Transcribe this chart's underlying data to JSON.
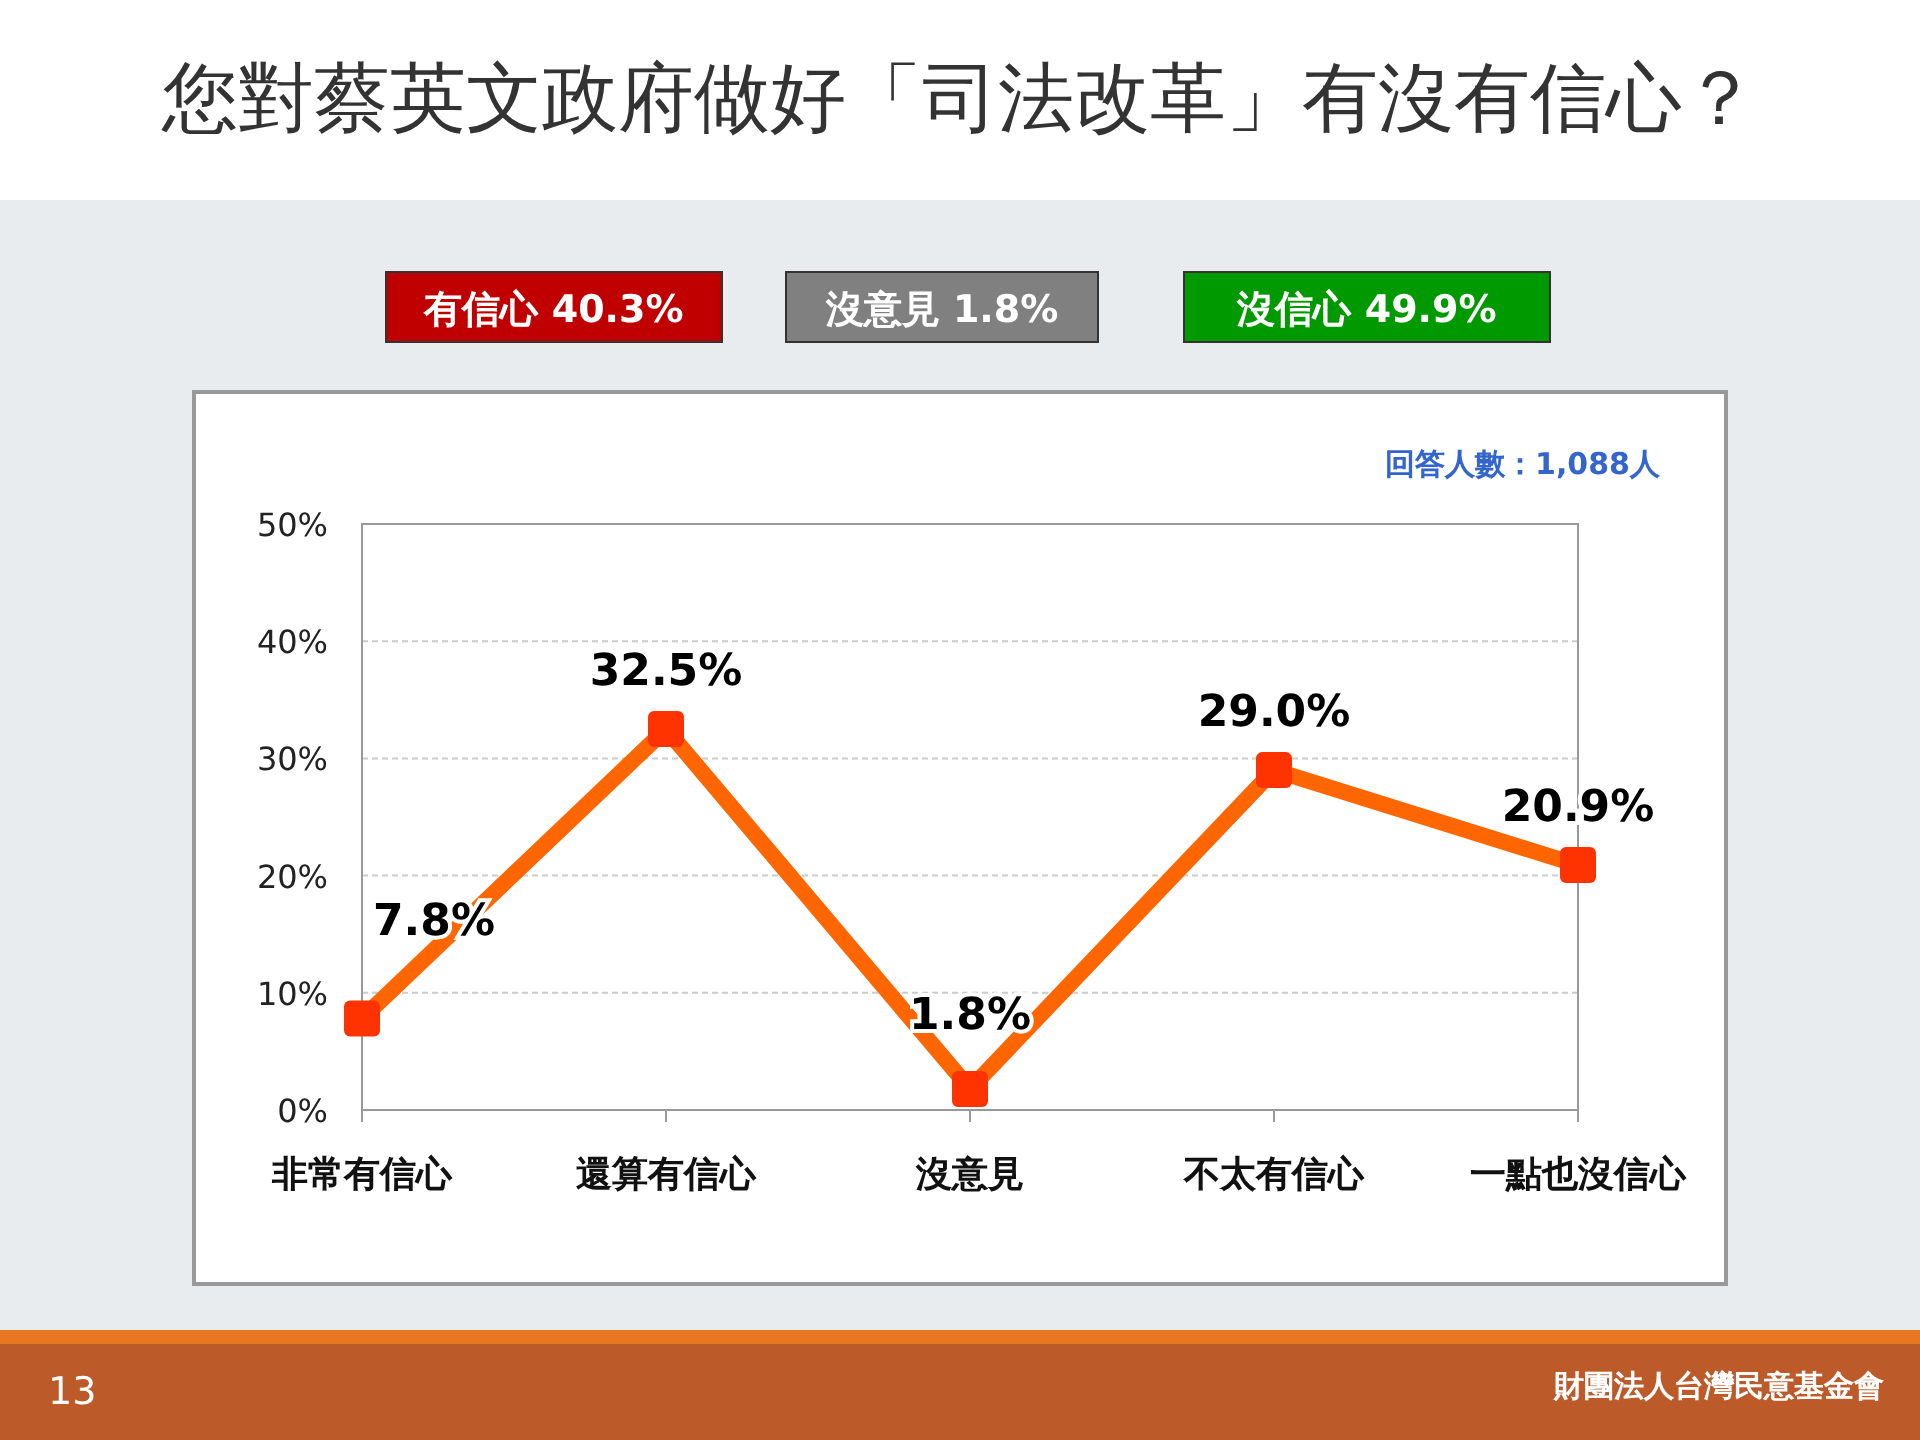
{
  "chart_data": {
    "type": "line",
    "title": "您對蔡英文政府做好「司法改革」有沒有信心？",
    "categories": [
      "非常有信心",
      "還算有信心",
      "沒意見",
      "不太有信心",
      "一點也沒信心"
    ],
    "series": [
      {
        "color": "#ff6600",
        "values": [
          7.8,
          32.5,
          1.8,
          29.0,
          20.9
        ]
      }
    ],
    "ylim": [
      0,
      50
    ],
    "yticks": [
      {
        "value": 0,
        "label": "0%"
      },
      {
        "value": 10,
        "label": "10%"
      },
      {
        "value": 20,
        "label": "20%"
      },
      {
        "value": 30,
        "label": "30%"
      },
      {
        "value": 40,
        "label": "40%"
      },
      {
        "value": 50,
        "label": "50%"
      }
    ],
    "value_labels": [
      "7.8%",
      "32.5%",
      "1.8%",
      "29.0%",
      "20.9%"
    ],
    "marker": "square",
    "line_style": "solid",
    "grid": "y",
    "annotations": [
      "有信心 40.3%",
      "沒意見 1.8%",
      "沒信心 49.9%",
      "回答人數：1,088人",
      "13",
      "財團法人台灣民意基金會"
    ]
  }
}
